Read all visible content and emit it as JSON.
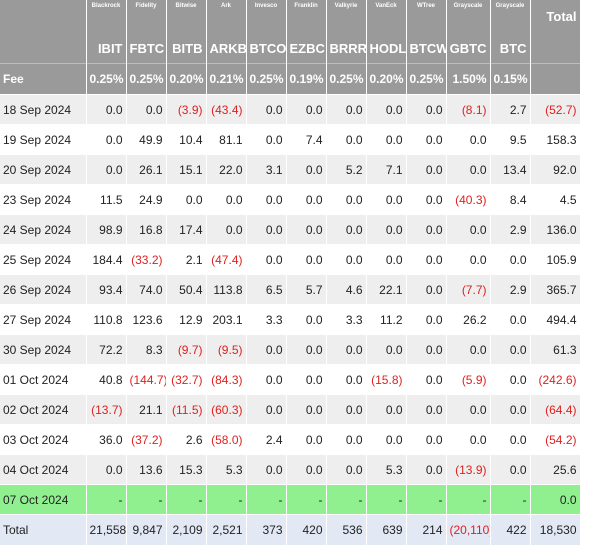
{
  "header": {
    "issuers": [
      "",
      "Blackrock",
      "Fidelity",
      "Bitwise",
      "Ark",
      "Invesco",
      "Franklin",
      "Valkyrie",
      "VanEck",
      "WTree",
      "Grayscale",
      "Grayscale",
      "Total"
    ],
    "tickers": [
      "",
      "IBIT",
      "FBTC",
      "BITB",
      "ARKB",
      "BTCO",
      "EZBC",
      "BRRR",
      "HODL",
      "BTCW",
      "GBTC",
      "BTC",
      ""
    ],
    "fees": [
      "Fee",
      "0.25%",
      "0.25%",
      "0.20%",
      "0.21%",
      "0.25%",
      "0.19%",
      "0.25%",
      "0.20%",
      "0.25%",
      "1.50%",
      "0.15%",
      ""
    ]
  },
  "rows": [
    {
      "date": "18 Sep 2024",
      "v": [
        "0.0",
        "0.0",
        "(3.9)",
        "(43.4)",
        "0.0",
        "0.0",
        "0.0",
        "0.0",
        "0.0",
        "(8.1)",
        "2.7",
        "(52.7)"
      ]
    },
    {
      "date": "19 Sep 2024",
      "v": [
        "0.0",
        "49.9",
        "10.4",
        "81.1",
        "0.0",
        "7.4",
        "0.0",
        "0.0",
        "0.0",
        "0.0",
        "9.5",
        "158.3"
      ]
    },
    {
      "date": "20 Sep 2024",
      "v": [
        "0.0",
        "26.1",
        "15.1",
        "22.0",
        "3.1",
        "0.0",
        "5.2",
        "7.1",
        "0.0",
        "0.0",
        "13.4",
        "92.0"
      ]
    },
    {
      "date": "23 Sep 2024",
      "v": [
        "11.5",
        "24.9",
        "0.0",
        "0.0",
        "0.0",
        "0.0",
        "0.0",
        "0.0",
        "0.0",
        "(40.3)",
        "8.4",
        "4.5"
      ]
    },
    {
      "date": "24 Sep 2024",
      "v": [
        "98.9",
        "16.8",
        "17.4",
        "0.0",
        "0.0",
        "0.0",
        "0.0",
        "0.0",
        "0.0",
        "0.0",
        "2.9",
        "136.0"
      ]
    },
    {
      "date": "25 Sep 2024",
      "v": [
        "184.4",
        "(33.2)",
        "2.1",
        "(47.4)",
        "0.0",
        "0.0",
        "0.0",
        "0.0",
        "0.0",
        "0.0",
        "0.0",
        "105.9"
      ]
    },
    {
      "date": "26 Sep 2024",
      "v": [
        "93.4",
        "74.0",
        "50.4",
        "113.8",
        "6.5",
        "5.7",
        "4.6",
        "22.1",
        "0.0",
        "(7.7)",
        "2.9",
        "365.7"
      ]
    },
    {
      "date": "27 Sep 2024",
      "v": [
        "110.8",
        "123.6",
        "12.9",
        "203.1",
        "3.3",
        "0.0",
        "3.3",
        "11.2",
        "0.0",
        "26.2",
        "0.0",
        "494.4"
      ]
    },
    {
      "date": "30 Sep 2024",
      "v": [
        "72.2",
        "8.3",
        "(9.7)",
        "(9.5)",
        "0.0",
        "0.0",
        "0.0",
        "0.0",
        "0.0",
        "0.0",
        "0.0",
        "61.3"
      ]
    },
    {
      "date": "01 Oct 2024",
      "v": [
        "40.8",
        "(144.7)",
        "(32.7)",
        "(84.3)",
        "0.0",
        "0.0",
        "0.0",
        "(15.8)",
        "0.0",
        "(5.9)",
        "0.0",
        "(242.6)"
      ]
    },
    {
      "date": "02 Oct 2024",
      "v": [
        "(13.7)",
        "21.1",
        "(11.5)",
        "(60.3)",
        "0.0",
        "0.0",
        "0.0",
        "0.0",
        "0.0",
        "0.0",
        "0.0",
        "(64.4)"
      ]
    },
    {
      "date": "03 Oct 2024",
      "v": [
        "36.0",
        "(37.2)",
        "2.6",
        "(58.0)",
        "2.4",
        "0.0",
        "0.0",
        "0.0",
        "0.0",
        "0.0",
        "0.0",
        "(54.2)"
      ]
    },
    {
      "date": "04 Oct 2024",
      "v": [
        "0.0",
        "13.6",
        "15.3",
        "5.3",
        "0.0",
        "0.0",
        "0.0",
        "5.3",
        "0.0",
        "(13.9)",
        "0.0",
        "25.6"
      ]
    },
    {
      "date": "07 Oct 2024",
      "v": [
        "-",
        "-",
        "-",
        "-",
        "-",
        "-",
        "-",
        "-",
        "-",
        "-",
        "-",
        "0.0"
      ],
      "highlight": true
    }
  ],
  "totals": {
    "label": "Total",
    "v": [
      "21,558",
      "9,847",
      "2,109",
      "2,521",
      "373",
      "420",
      "536",
      "639",
      "214",
      "(20,110)",
      "422",
      "18,530"
    ]
  },
  "colors": {
    "header_bg": "#9a9a9a",
    "negative": "#e02020",
    "highlight_row": "#90f090",
    "total_row_bg": "#e3e8f5"
  }
}
